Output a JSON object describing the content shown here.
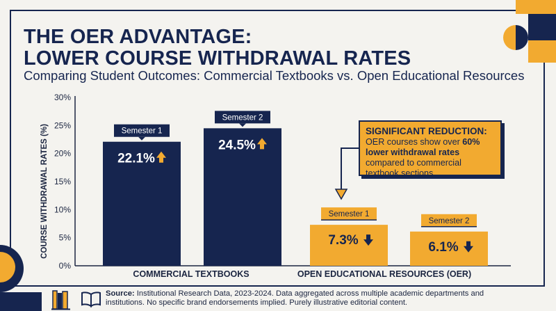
{
  "header": {
    "title_line1": "THE OER ADVANTAGE:",
    "title_line2": "LOWER COURSE WITHDRAWAL RATES",
    "subtitle": "Comparing Student Outcomes: Commercial Textbooks vs. Open Educational Resources"
  },
  "callout": {
    "title": "SIGNIFICANT REDUCTION:",
    "text_before": "OER courses show over ",
    "text_bold": "60% lower withdrawal rates",
    "text_after": " compared to commercial textbook sections."
  },
  "footer": {
    "source_label": "Source:",
    "source_text": " Institutional Research Data, 2023-2024. Data aggregated across multiple academic departments and institutions. No specific brand endorsements implied. Purely illustrative editorial content."
  },
  "colors": {
    "navy": "#16254f",
    "gold": "#f2aa30",
    "background": "#f4f3ef"
  },
  "icons": [
    "arrow-up-icon",
    "arrow-down-icon",
    "book-icon",
    "open-book-icon"
  ],
  "chart_data": {
    "type": "bar",
    "title": "THE OER ADVANTAGE: LOWER COURSE WITHDRAWAL RATES",
    "ylabel": "COURSE WITHDRAWAL RATES (%)",
    "ylim": [
      0,
      30
    ],
    "yticks": [
      "0%",
      "5%",
      "10%",
      "15%",
      "20%",
      "25%",
      "30%"
    ],
    "categories": [
      "COMMERCIAL TEXTBOOKS",
      "OPEN EDUCATIONAL RESOURCES (OER)"
    ],
    "series": [
      {
        "name": "Semester 1",
        "values": [
          22.1,
          7.3
        ]
      },
      {
        "name": "Semester 2",
        "values": [
          24.5,
          6.1
        ]
      }
    ],
    "data_labels": [
      [
        "22.1%",
        "24.5%"
      ],
      [
        "7.3%",
        "6.1%"
      ]
    ],
    "trend": [
      "up",
      "down"
    ],
    "grid": false
  }
}
